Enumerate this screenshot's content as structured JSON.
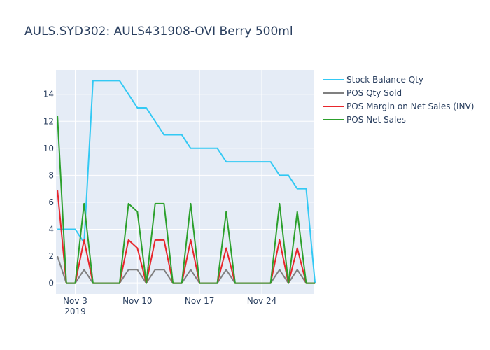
{
  "chart_data": {
    "type": "line",
    "title": "AULS.SYD302:  AULS431908-OVI Berry 500ml",
    "xlabel": "",
    "ylabel": "",
    "x_ticks": [
      {
        "label": "Nov 3",
        "sub": "2019",
        "date": "2019-11-03"
      },
      {
        "label": "Nov 10",
        "sub": "",
        "date": "2019-11-10"
      },
      {
        "label": "Nov 17",
        "sub": "",
        "date": "2019-11-17"
      },
      {
        "label": "Nov 24",
        "sub": "",
        "date": "2019-11-24"
      }
    ],
    "y_ticks": [
      0,
      2,
      4,
      6,
      8,
      10,
      12,
      14
    ],
    "ylim": [
      -0.8,
      15.8
    ],
    "xlim": [
      "2019-10-31T20:00",
      "2019-11-29T20:00"
    ],
    "grid": true,
    "legend_position": "right",
    "x": [
      "2019-11-01",
      "2019-11-02",
      "2019-11-03",
      "2019-11-04",
      "2019-11-05",
      "2019-11-06",
      "2019-11-07",
      "2019-11-08",
      "2019-11-09",
      "2019-11-10",
      "2019-11-11",
      "2019-11-12",
      "2019-11-13",
      "2019-11-14",
      "2019-11-15",
      "2019-11-16",
      "2019-11-17",
      "2019-11-18",
      "2019-11-19",
      "2019-11-20",
      "2019-11-21",
      "2019-11-22",
      "2019-11-23",
      "2019-11-24",
      "2019-11-25",
      "2019-11-26",
      "2019-11-27",
      "2019-11-28",
      "2019-11-29",
      "2019-11-30"
    ],
    "series": [
      {
        "name": "Stock Balance Qty",
        "color": "#33c9f4",
        "values": [
          4,
          4,
          4,
          3,
          15,
          15,
          15,
          15,
          14,
          13,
          13,
          12,
          11,
          11,
          11,
          10,
          10,
          10,
          10,
          9,
          9,
          9,
          9,
          9,
          9,
          8,
          8,
          7,
          7,
          0
        ]
      },
      {
        "name": "POS Qty Sold",
        "color": "#808080",
        "values": [
          2,
          0,
          0,
          1,
          0,
          0,
          0,
          0,
          1,
          1,
          0,
          1,
          1,
          0,
          0,
          1,
          0,
          0,
          0,
          1,
          0,
          0,
          0,
          0,
          0,
          1,
          0,
          1,
          0,
          0
        ]
      },
      {
        "name": "POS Margin on Net Sales (INV)",
        "color": "#e8262c",
        "values": [
          6.9,
          0,
          0,
          3.2,
          0,
          0,
          0,
          0,
          3.2,
          2.6,
          0,
          3.2,
          3.2,
          0,
          0,
          3.2,
          0,
          0,
          0,
          2.6,
          0,
          0,
          0,
          0,
          0,
          3.2,
          0,
          2.6,
          0,
          0
        ]
      },
      {
        "name": "POS Net Sales",
        "color": "#2ca02c",
        "values": [
          12.4,
          0,
          0,
          5.9,
          0,
          0,
          0,
          0,
          5.9,
          5.3,
          0,
          5.9,
          5.9,
          0,
          0,
          5.9,
          0,
          0,
          0,
          5.3,
          0,
          0,
          0,
          0,
          0,
          5.9,
          0,
          5.3,
          0,
          0
        ]
      }
    ]
  }
}
